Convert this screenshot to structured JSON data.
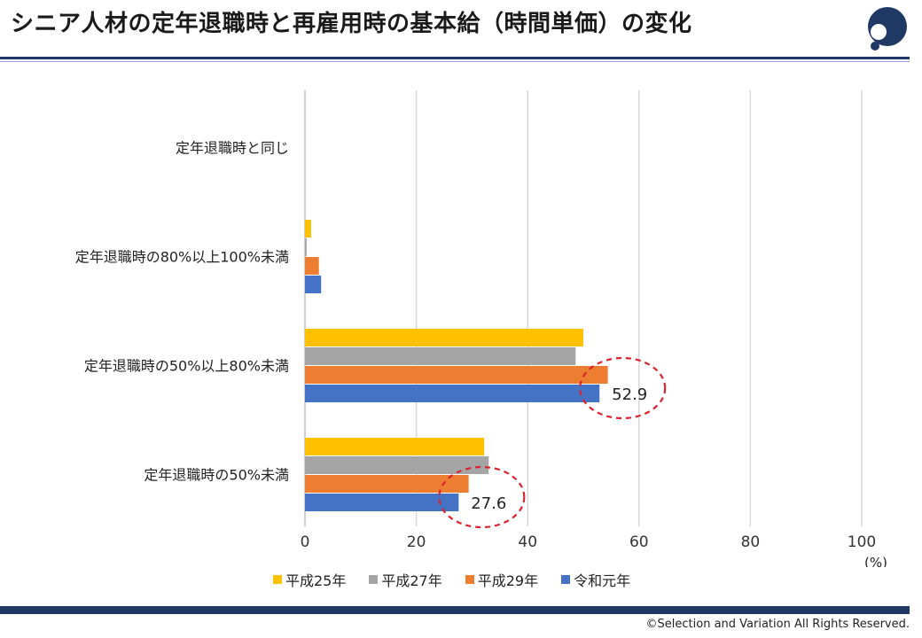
{
  "header": {
    "title": "シニア人材の定年退職時と再雇用時の基本給（時間単価）の変化"
  },
  "footer": {
    "copyright": "©Selection and Variation All Rights Reserved."
  },
  "colors": {
    "brand": "#1f3864",
    "h25": "#ffc000",
    "h27": "#a5a5a5",
    "h29": "#ed7d31",
    "r1": "#4472c4",
    "highlight": "#d9232d"
  },
  "chart_data": {
    "type": "bar",
    "orientation": "horizontal",
    "title": "",
    "xlabel": "(%)",
    "ylabel": "",
    "xlim": [
      0,
      100
    ],
    "xticks": [
      0,
      20,
      40,
      60,
      80,
      100
    ],
    "grid": true,
    "legend_position": "bottom",
    "categories": [
      "定年退職時と同じ",
      "定年退職時の80%以上100%未満",
      "定年退職時の50%以上80%未満",
      "定年退職時の50%未満"
    ],
    "series": [
      {
        "name": "平成25年",
        "color": "#ffc000",
        "values": [
          0,
          1.1,
          50.0,
          32.2
        ]
      },
      {
        "name": "平成27年",
        "color": "#a5a5a5",
        "values": [
          0,
          0.3,
          48.6,
          33.0
        ]
      },
      {
        "name": "平成29年",
        "color": "#ed7d31",
        "values": [
          0,
          2.5,
          54.4,
          29.4
        ]
      },
      {
        "name": "令和元年",
        "color": "#4472c4",
        "values": [
          0,
          2.9,
          52.9,
          27.6
        ]
      }
    ],
    "annotations": [
      {
        "category_index": 2,
        "series_index": 3,
        "label": "52.9"
      },
      {
        "category_index": 3,
        "series_index": 3,
        "label": "27.6"
      }
    ]
  }
}
